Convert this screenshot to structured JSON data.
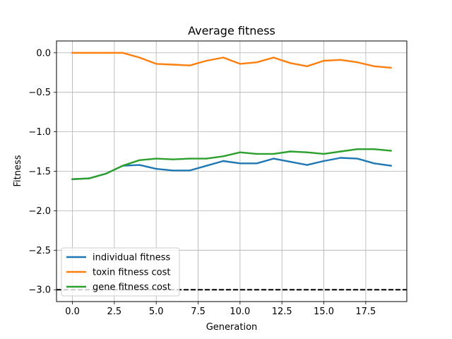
{
  "chart_data": {
    "type": "line",
    "title": "Average fitness",
    "xlabel": "Generation",
    "ylabel": "Fitness",
    "xlim": [
      -0.95,
      19.95
    ],
    "ylim": [
      -3.15,
      0.15
    ],
    "grid": true,
    "legend_position": "lower-left",
    "x_ticks": [
      0.0,
      2.5,
      5.0,
      7.5,
      10.0,
      12.5,
      15.0,
      17.5
    ],
    "x_tick_labels": [
      "0.0",
      "2.5",
      "5.0",
      "7.5",
      "10.0",
      "12.5",
      "15.0",
      "17.5"
    ],
    "y_ticks": [
      0.0,
      -0.5,
      -1.0,
      -1.5,
      -2.0,
      -2.5,
      -3.0
    ],
    "y_tick_labels": [
      "0.0",
      "−0.5",
      "−1.0",
      "−1.5",
      "−2.0",
      "−2.5",
      "−3.0"
    ],
    "x": [
      0,
      1,
      2,
      3,
      4,
      5,
      6,
      7,
      8,
      9,
      10,
      11,
      12,
      13,
      14,
      15,
      16,
      17,
      18,
      19
    ],
    "series": [
      {
        "name": "individual fitness",
        "color": "#1f77b4",
        "values": [
          -1.6,
          -1.59,
          -1.53,
          -1.43,
          -1.42,
          -1.47,
          -1.49,
          -1.49,
          -1.43,
          -1.37,
          -1.4,
          -1.4,
          -1.34,
          -1.38,
          -1.42,
          -1.37,
          -1.33,
          -1.34,
          -1.4,
          -1.43
        ]
      },
      {
        "name": "toxin fitness cost",
        "color": "#ff7f0e",
        "values": [
          0.0,
          0.0,
          0.0,
          0.0,
          -0.06,
          -0.14,
          -0.15,
          -0.16,
          -0.1,
          -0.06,
          -0.14,
          -0.12,
          -0.06,
          -0.13,
          -0.17,
          -0.1,
          -0.09,
          -0.12,
          -0.17,
          -0.19
        ]
      },
      {
        "name": "gene fitness cost",
        "color": "#2ca02c",
        "values": [
          -1.6,
          -1.59,
          -1.53,
          -1.43,
          -1.36,
          -1.34,
          -1.35,
          -1.34,
          -1.34,
          -1.31,
          -1.26,
          -1.28,
          -1.28,
          -1.25,
          -1.26,
          -1.28,
          -1.25,
          -1.22,
          -1.22,
          -1.24
        ]
      }
    ],
    "reference_line": {
      "y": -3.0,
      "style": "dashed",
      "color": "#000000"
    }
  }
}
